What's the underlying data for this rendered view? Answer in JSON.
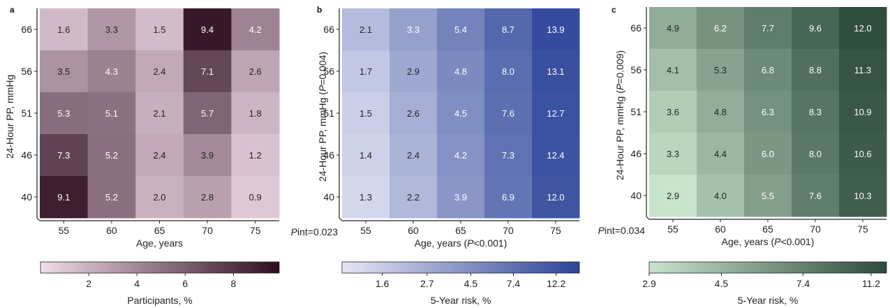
{
  "chart_data": [
    {
      "type": "heatmap",
      "panel_letter": "a",
      "xlabel": "Age, years",
      "xlabel_p": "",
      "ylabel": "24-Hour PP, mmHg",
      "ylabel_p": "",
      "x_categories": [
        "55",
        "60",
        "65",
        "70",
        "75"
      ],
      "y_categories": [
        "66",
        "56",
        "51",
        "46",
        "40"
      ],
      "values": [
        [
          1.6,
          3.3,
          1.5,
          9.4,
          4.2
        ],
        [
          3.5,
          4.3,
          2.4,
          7.1,
          2.6
        ],
        [
          5.3,
          5.1,
          2.1,
          5.7,
          1.8
        ],
        [
          7.3,
          5.2,
          2.4,
          3.9,
          1.2
        ],
        [
          9.1,
          5.2,
          2.0,
          2.8,
          0.9
        ]
      ],
      "pint": "",
      "colorbar": {
        "label": "Participants, %",
        "ticks": [
          "2",
          "4",
          "6",
          "8"
        ],
        "tick_values": [
          2,
          4,
          6,
          8
        ],
        "range": [
          0,
          9.9
        ],
        "colors": [
          "#f1dbe8",
          "#2d0e1f"
        ]
      }
    },
    {
      "type": "heatmap",
      "panel_letter": "b",
      "xlabel": "Age, years",
      "xlabel_p": "(P<0.001)",
      "ylabel": "24-Hour PP, mmHg",
      "ylabel_p": "(P=0.004)",
      "x_categories": [
        "55",
        "60",
        "65",
        "70",
        "75"
      ],
      "y_categories": [
        "66",
        "56",
        "51",
        "46",
        "40"
      ],
      "values": [
        [
          2.1,
          3.3,
          5.4,
          8.7,
          13.9
        ],
        [
          1.7,
          2.9,
          4.8,
          8.0,
          13.1
        ],
        [
          1.5,
          2.6,
          4.5,
          7.6,
          12.7
        ],
        [
          1.4,
          2.4,
          4.2,
          7.3,
          12.4
        ],
        [
          1.3,
          2.2,
          3.9,
          6.9,
          12.0
        ]
      ],
      "pint": "Pint=0.023",
      "colorbar": {
        "label": "5-Year risk, %",
        "ticks": [
          "1.6",
          "2.7",
          "4.5",
          "7.4",
          "12.2"
        ],
        "tick_values": [
          1.6,
          2.7,
          4.5,
          7.4,
          12.2
        ],
        "range": [
          1.0,
          16.0
        ],
        "log": true,
        "colors": [
          "#e6e6f4",
          "#2c4499"
        ]
      }
    },
    {
      "type": "heatmap",
      "panel_letter": "c",
      "xlabel": "Age, years",
      "xlabel_p": "(P<0.001)",
      "ylabel": "24-Hour PP, mmHg",
      "ylabel_p": "(P=0.009)",
      "x_categories": [
        "55",
        "60",
        "65",
        "70",
        "75"
      ],
      "y_categories": [
        "66",
        "56",
        "51",
        "46",
        "40"
      ],
      "values": [
        [
          4.9,
          6.2,
          7.7,
          9.6,
          12.0
        ],
        [
          4.1,
          5.3,
          6.8,
          8.8,
          11.3
        ],
        [
          3.6,
          4.8,
          6.3,
          8.3,
          10.9
        ],
        [
          3.3,
          4.4,
          6.0,
          8.0,
          10.6
        ],
        [
          2.9,
          4.0,
          5.5,
          7.6,
          10.3
        ]
      ],
      "pint": "Pint=0.034",
      "colorbar": {
        "label": "5-Year risk, %",
        "ticks": [
          "2.9",
          "4.5",
          "7.4",
          "11.2"
        ],
        "tick_values": [
          2.9,
          4.5,
          7.4,
          11.2
        ],
        "range": [
          2.9,
          12.3
        ],
        "log": true,
        "colors": [
          "#c8e4cc",
          "#2e4a3c"
        ]
      }
    }
  ]
}
